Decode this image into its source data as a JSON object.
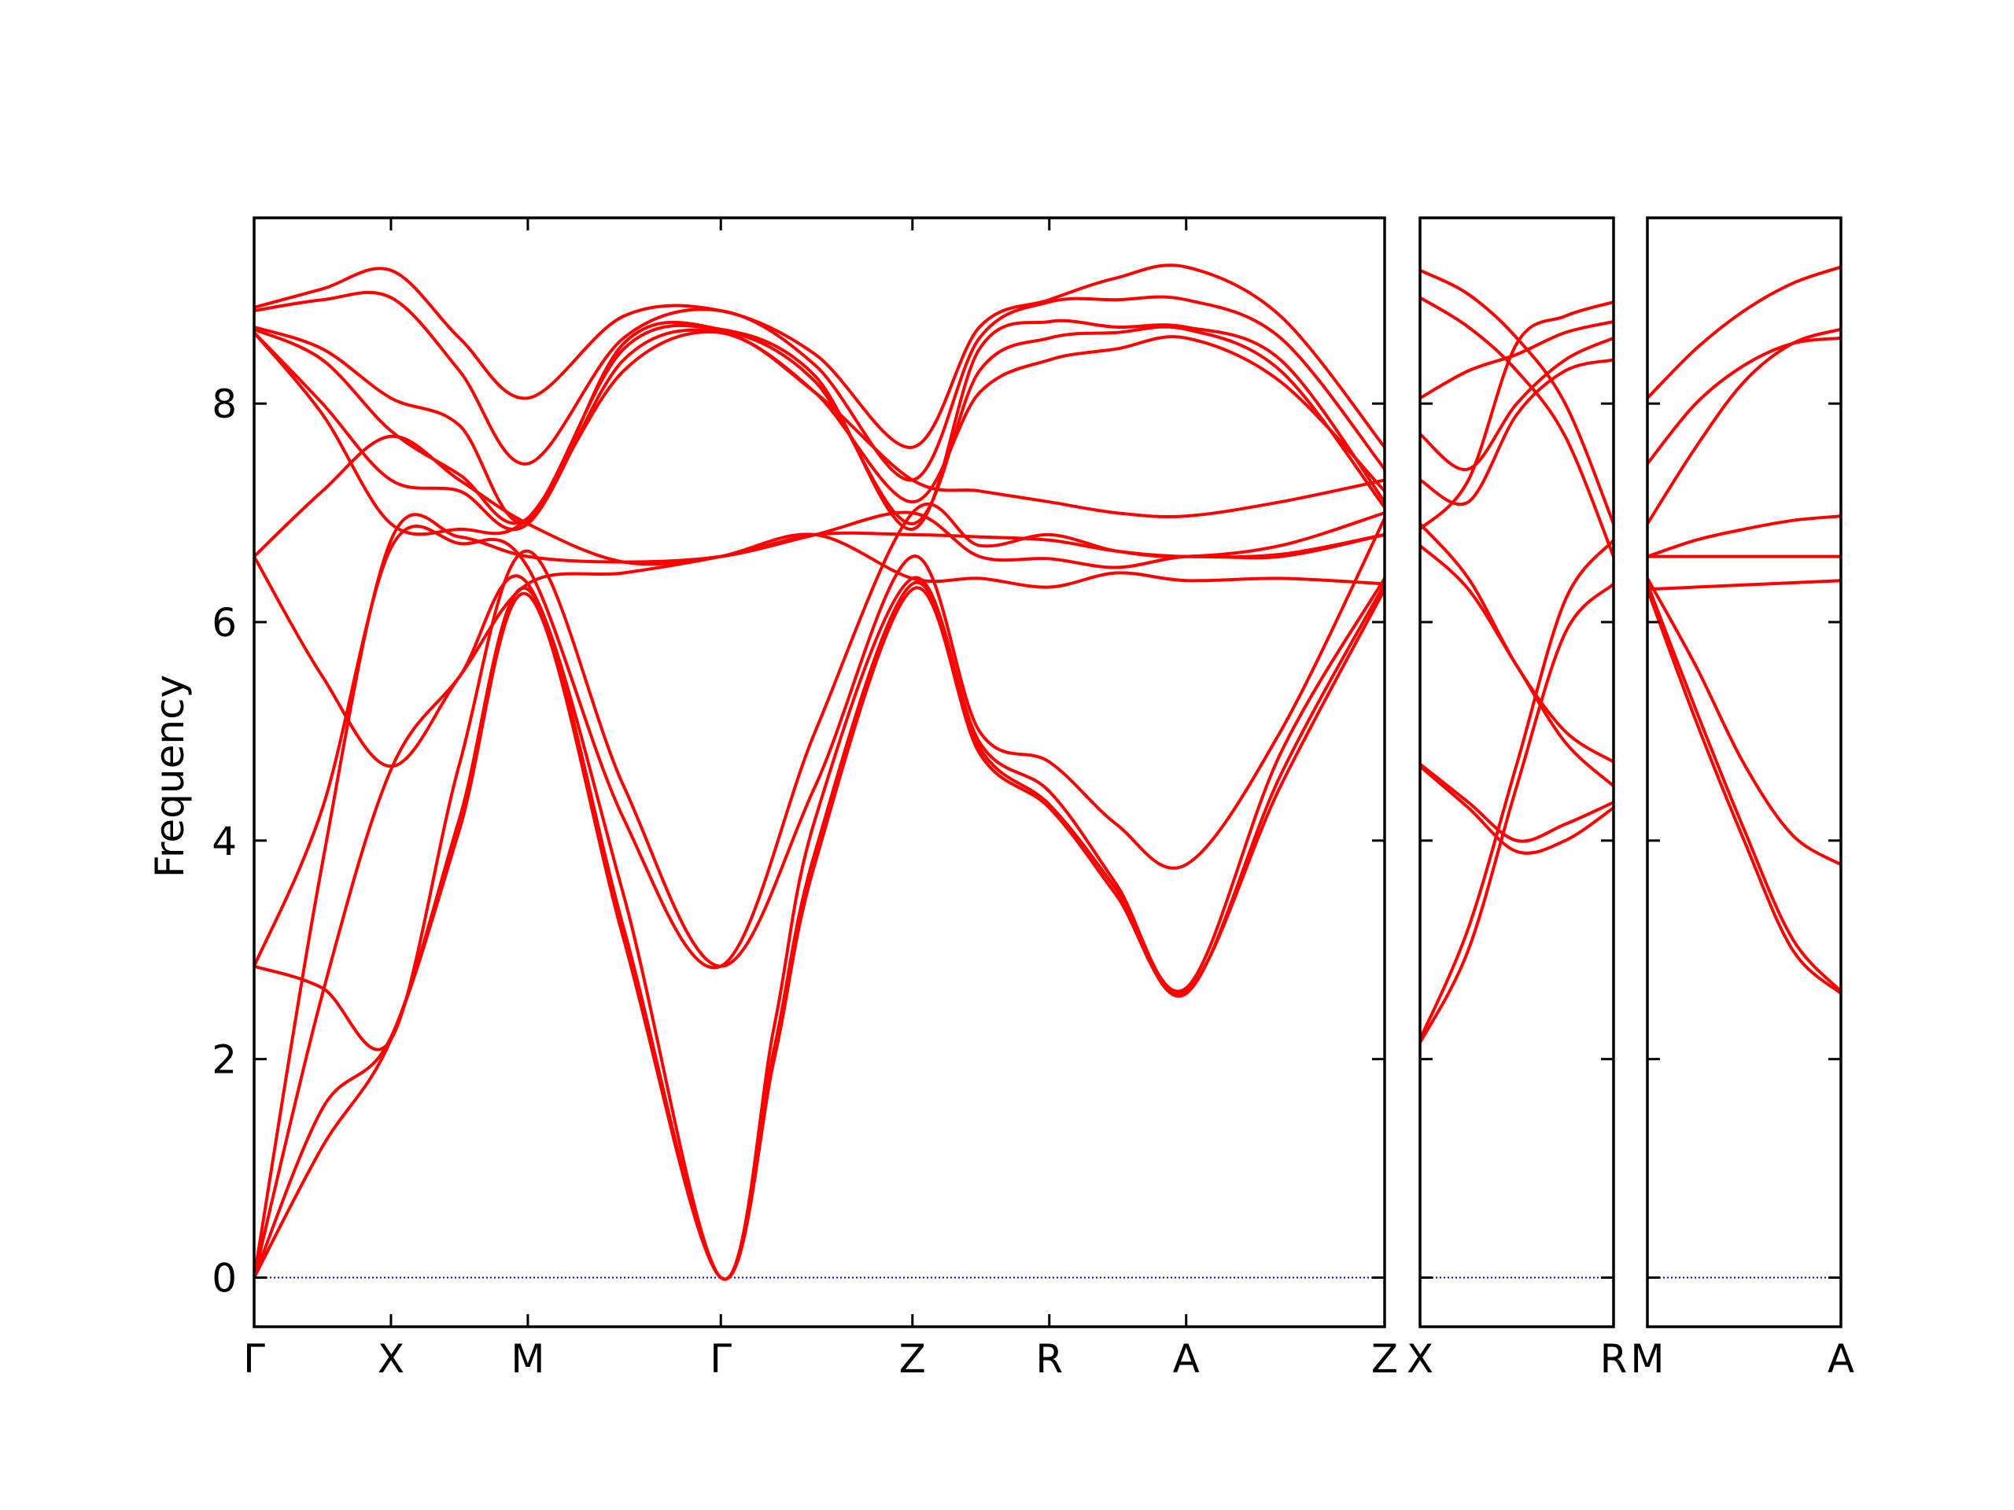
{
  "chart_data": {
    "type": "line",
    "ylabel": "Frequency",
    "yticks": [
      0,
      2,
      4,
      6,
      8
    ],
    "ylim": [
      -0.45,
      9.7
    ],
    "grid": false,
    "legend": "none",
    "colors": {
      "bands": "#ff0000",
      "zero_line": "#0000cc",
      "frame": "#000000"
    },
    "panels": [
      {
        "id": "main",
        "path_labels": [
          "Γ",
          "X",
          "M",
          "Γ",
          "Z",
          "R",
          "A",
          "Z"
        ],
        "label_positions": [
          0,
          1,
          2,
          3.41,
          4.81,
          5.81,
          6.81,
          8.26
        ],
        "xlim": [
          0,
          8.26
        ],
        "bands": [
          {
            "x": [
              0,
              0.5,
              1,
              1.5,
              2,
              2.7,
              3.41,
              3.8,
              4.1,
              4.81,
              5.3,
              5.81,
              6.3,
              6.81,
              7.5,
              8.26
            ],
            "y": [
              0.0,
              1.2,
              2.18,
              4.1,
              6.25,
              3.1,
              0.0,
              2.0,
              3.8,
              6.3,
              4.8,
              4.3,
              3.5,
              2.62,
              4.5,
              6.3
            ]
          },
          {
            "x": [
              0,
              0.5,
              1,
              1.5,
              2,
              2.7,
              3.41,
              3.8,
              4.1,
              4.81,
              5.3,
              5.81,
              6.3,
              6.81,
              7.5,
              8.26
            ],
            "y": [
              0.0,
              1.55,
              2.2,
              4.2,
              6.3,
              3.2,
              0.0,
              2.1,
              3.9,
              6.35,
              4.85,
              4.33,
              3.55,
              2.6,
              4.6,
              6.35
            ]
          },
          {
            "x": [
              0,
              0.5,
              1,
              1.5,
              2,
              2.7,
              3.41,
              3.8,
              4.1,
              4.81,
              5.3,
              5.81,
              6.3,
              6.81,
              7.5,
              8.26
            ],
            "y": [
              0.0,
              2.6,
              4.65,
              5.5,
              6.35,
              3.5,
              0.0,
              2.3,
              4.2,
              6.4,
              4.9,
              4.45,
              3.6,
              2.65,
              4.8,
              6.4
            ]
          },
          {
            "x": [
              0,
              0.5,
              1,
              1.5,
              2,
              2.7,
              3.41,
              4.1,
              4.81,
              5.3,
              5.81,
              6.3,
              6.81,
              7.5,
              8.26
            ],
            "y": [
              2.85,
              2.65,
              2.18,
              4.7,
              6.65,
              4.5,
              2.85,
              4.5,
              6.6,
              5.0,
              4.72,
              4.15,
              3.78,
              5.0,
              6.95
            ]
          },
          {
            "x": [
              0,
              0.5,
              1,
              1.5,
              2,
              2.7,
              3.41,
              4.1,
              4.81,
              5.3,
              5.81,
              6.3,
              6.81,
              7.5,
              8.26
            ],
            "y": [
              2.85,
              4.3,
              6.68,
              6.72,
              6.5,
              4.2,
              2.85,
              5.0,
              7.0,
              6.7,
              6.8,
              6.65,
              6.6,
              6.7,
              7.0
            ]
          },
          {
            "x": [
              0,
              0.5,
              1,
              1.5,
              2,
              2.7,
              3.41,
              4.1,
              4.81,
              5.3,
              5.81,
              6.3,
              6.81,
              7.5,
              8.26
            ],
            "y": [
              0.0,
              3.8,
              6.75,
              6.78,
              6.6,
              6.55,
              6.6,
              6.8,
              6.8,
              6.78,
              6.75,
              6.65,
              6.6,
              6.62,
              6.8
            ]
          },
          {
            "x": [
              0,
              0.5,
              1,
              1.5,
              2,
              2.7,
              3.41,
              4.1,
              4.81,
              5.3,
              5.81,
              6.3,
              6.81,
              7.5,
              8.26
            ],
            "y": [
              6.6,
              5.5,
              4.68,
              5.5,
              6.35,
              6.45,
              6.6,
              6.8,
              6.4,
              6.4,
              6.32,
              6.45,
              6.38,
              6.4,
              6.35
            ]
          },
          {
            "x": [
              0,
              0.5,
              1,
              1.5,
              2,
              2.7,
              3.41,
              4.1,
              4.81,
              5.3,
              5.81,
              6.3,
              6.81,
              7.5,
              8.26
            ],
            "y": [
              6.6,
              7.2,
              7.7,
              7.3,
              6.9,
              6.55,
              6.6,
              6.8,
              7.0,
              6.6,
              6.58,
              6.5,
              6.6,
              6.6,
              6.8
            ]
          },
          {
            "x": [
              0,
              0.5,
              1,
              1.5,
              2,
              2.7,
              3.41,
              4.1,
              4.81,
              5.3,
              5.81,
              6.3,
              6.81,
              7.5,
              8.26
            ],
            "y": [
              8.65,
              7.9,
              6.9,
              6.85,
              6.95,
              8.3,
              8.65,
              8.1,
              7.3,
              7.2,
              7.1,
              7.0,
              6.97,
              7.1,
              7.3
            ]
          },
          {
            "x": [
              0,
              0.5,
              1,
              1.5,
              2,
              2.7,
              3.41,
              4.1,
              4.81,
              5.3,
              5.81,
              6.3,
              6.81,
              7.5,
              8.26
            ],
            "y": [
              8.65,
              8.0,
              7.3,
              7.2,
              6.9,
              8.4,
              8.65,
              8.1,
              7.1,
              8.1,
              8.4,
              8.5,
              8.6,
              8.2,
              7.2
            ]
          },
          {
            "x": [
              0,
              0.5,
              1,
              1.5,
              2,
              2.7,
              3.41,
              4.1,
              4.81,
              5.3,
              5.81,
              6.3,
              6.81,
              7.5,
              8.26
            ],
            "y": [
              8.68,
              8.4,
              7.75,
              7.35,
              6.95,
              8.5,
              8.67,
              8.2,
              6.9,
              8.3,
              8.6,
              8.65,
              8.68,
              8.3,
              7.05
            ]
          },
          {
            "x": [
              0,
              0.5,
              1,
              1.5,
              2,
              2.7,
              3.41,
              4.1,
              4.81,
              5.3,
              5.81,
              6.3,
              6.81,
              7.5,
              8.26
            ],
            "y": [
              8.7,
              8.5,
              8.05,
              7.8,
              6.92,
              8.55,
              8.68,
              8.25,
              6.85,
              8.5,
              8.75,
              8.7,
              8.7,
              8.4,
              7.1
            ]
          },
          {
            "x": [
              0,
              0.5,
              1,
              1.5,
              2,
              2.7,
              3.41,
              4.1,
              4.81,
              5.3,
              5.81,
              6.3,
              6.81,
              7.5,
              8.26
            ],
            "y": [
              8.85,
              8.95,
              8.97,
              8.3,
              7.45,
              8.6,
              8.85,
              8.35,
              7.3,
              8.6,
              8.93,
              8.95,
              8.95,
              8.6,
              7.4
            ]
          },
          {
            "x": [
              0,
              0.5,
              1,
              1.5,
              2,
              2.7,
              3.41,
              4.1,
              4.81,
              5.3,
              5.81,
              6.3,
              6.81,
              7.5,
              8.26
            ],
            "y": [
              8.88,
              9.05,
              9.22,
              8.6,
              8.05,
              8.8,
              8.85,
              8.45,
              7.6,
              8.7,
              8.95,
              9.15,
              9.25,
              8.8,
              7.6
            ]
          }
        ]
      },
      {
        "id": "xr",
        "path_labels": [
          "X",
          "R"
        ],
        "label_positions": [
          0,
          1
        ],
        "xlim": [
          0,
          1
        ],
        "bands": [
          {
            "x": [
              0,
              0.25,
              0.5,
              0.75,
              1
            ],
            "y": [
              2.15,
              3.0,
              4.5,
              5.9,
              6.35
            ]
          },
          {
            "x": [
              0,
              0.25,
              0.5,
              0.75,
              1
            ],
            "y": [
              2.18,
              3.2,
              4.7,
              6.2,
              6.75
            ]
          },
          {
            "x": [
              0,
              0.25,
              0.5,
              0.75,
              1
            ],
            "y": [
              4.68,
              4.3,
              3.9,
              4.0,
              4.3
            ]
          },
          {
            "x": [
              0,
              0.25,
              0.5,
              0.75,
              1
            ],
            "y": [
              4.7,
              4.35,
              4.0,
              4.15,
              4.35
            ]
          },
          {
            "x": [
              0,
              0.25,
              0.5,
              0.75,
              1
            ],
            "y": [
              6.7,
              6.3,
              5.6,
              4.9,
              4.5
            ]
          },
          {
            "x": [
              0,
              0.25,
              0.5,
              0.75,
              1
            ],
            "y": [
              6.9,
              6.4,
              5.6,
              5.0,
              4.72
            ]
          },
          {
            "x": [
              0,
              0.25,
              0.5,
              0.75,
              1
            ],
            "y": [
              7.3,
              7.1,
              7.9,
              8.3,
              8.4
            ]
          },
          {
            "x": [
              0,
              0.25,
              0.5,
              0.75,
              1
            ],
            "y": [
              7.72,
              7.4,
              8.0,
              8.4,
              8.6
            ]
          },
          {
            "x": [
              0,
              0.25,
              0.5,
              0.75,
              1
            ],
            "y": [
              8.05,
              8.3,
              8.45,
              8.65,
              8.75
            ]
          },
          {
            "x": [
              0,
              0.25,
              0.5,
              0.75,
              1
            ],
            "y": [
              8.97,
              8.7,
              8.3,
              7.7,
              6.6
            ]
          },
          {
            "x": [
              0,
              0.25,
              0.5,
              0.75,
              1
            ],
            "y": [
              9.22,
              9.0,
              8.6,
              8.0,
              6.9
            ]
          },
          {
            "x": [
              0,
              0.25,
              0.5,
              0.75,
              1
            ],
            "y": [
              6.85,
              7.3,
              8.55,
              8.8,
              8.93
            ]
          }
        ]
      },
      {
        "id": "ma",
        "path_labels": [
          "M",
          "A"
        ],
        "label_positions": [
          0,
          1
        ],
        "xlim": [
          0,
          1
        ],
        "bands": [
          {
            "x": [
              0,
              0.25,
              0.5,
              0.75,
              1
            ],
            "y": [
              6.3,
              5.1,
              4.0,
              3.0,
              2.6
            ]
          },
          {
            "x": [
              0,
              0.25,
              0.5,
              0.75,
              1
            ],
            "y": [
              6.35,
              5.2,
              4.1,
              3.1,
              2.62
            ]
          },
          {
            "x": [
              0,
              0.25,
              0.5,
              0.75,
              1
            ],
            "y": [
              6.4,
              5.6,
              4.7,
              4.05,
              3.78
            ]
          },
          {
            "x": [
              0,
              0.25,
              0.5,
              0.75,
              1
            ],
            "y": [
              6.6,
              6.6,
              6.6,
              6.6,
              6.6
            ]
          },
          {
            "x": [
              0,
              0.25,
              0.5,
              0.75,
              1
            ],
            "y": [
              6.3,
              6.32,
              6.34,
              6.36,
              6.38
            ]
          },
          {
            "x": [
              0,
              0.25,
              0.5,
              0.75,
              1
            ],
            "y": [
              6.6,
              6.75,
              6.85,
              6.93,
              6.97
            ]
          },
          {
            "x": [
              0,
              0.25,
              0.5,
              0.75,
              1
            ],
            "y": [
              6.9,
              7.6,
              8.2,
              8.55,
              8.68
            ]
          },
          {
            "x": [
              0,
              0.25,
              0.5,
              0.75,
              1
            ],
            "y": [
              7.45,
              8.0,
              8.35,
              8.55,
              8.6
            ]
          },
          {
            "x": [
              0,
              0.25,
              0.5,
              0.75,
              1
            ],
            "y": [
              8.05,
              8.5,
              8.85,
              9.1,
              9.25
            ]
          }
        ]
      }
    ]
  }
}
